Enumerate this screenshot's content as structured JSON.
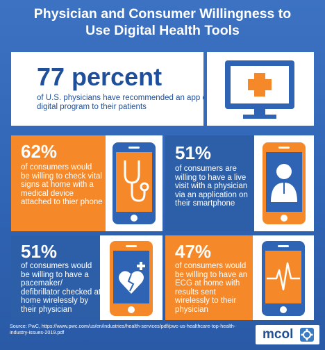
{
  "title_line1": "Physician and Consumer Willingness to",
  "title_line2": "Use Digital Health Tools",
  "physician": {
    "value": "77 percent",
    "text": "of U.S. physicians have recommended an app or digital program to their patients"
  },
  "stats": [
    {
      "value": "62%",
      "text": "of consumers would be willing to check vital signs at home with a medical device attached to thier phone",
      "icon": "stethoscope-icon"
    },
    {
      "value": "51%",
      "text": "of consumers are willing to have a live visit with a physician via an application on their smartphone",
      "icon": "doctor-icon"
    },
    {
      "value": "51%",
      "text": "of consumers would be willing to have a pacemaker/ defibrillator checked at home wirelessly by their physician",
      "icon": "heart-plus-icon"
    },
    {
      "value": "47%",
      "text": "of consumers would be willing to have an ECG at home with results sent wirelessly to their physician",
      "icon": "ecg-icon"
    }
  ],
  "source": "Source: PwC, https://www.pwc.com/us/en/industries/health-services/pdf/pwc-us-healthcare-top-health-industry-issues-2019.pdf",
  "logo": "mcol",
  "colors": {
    "background": "#2f63b3",
    "orange": "#f5892a",
    "dark_blue": "#1f4f9a",
    "white": "#ffffff"
  }
}
